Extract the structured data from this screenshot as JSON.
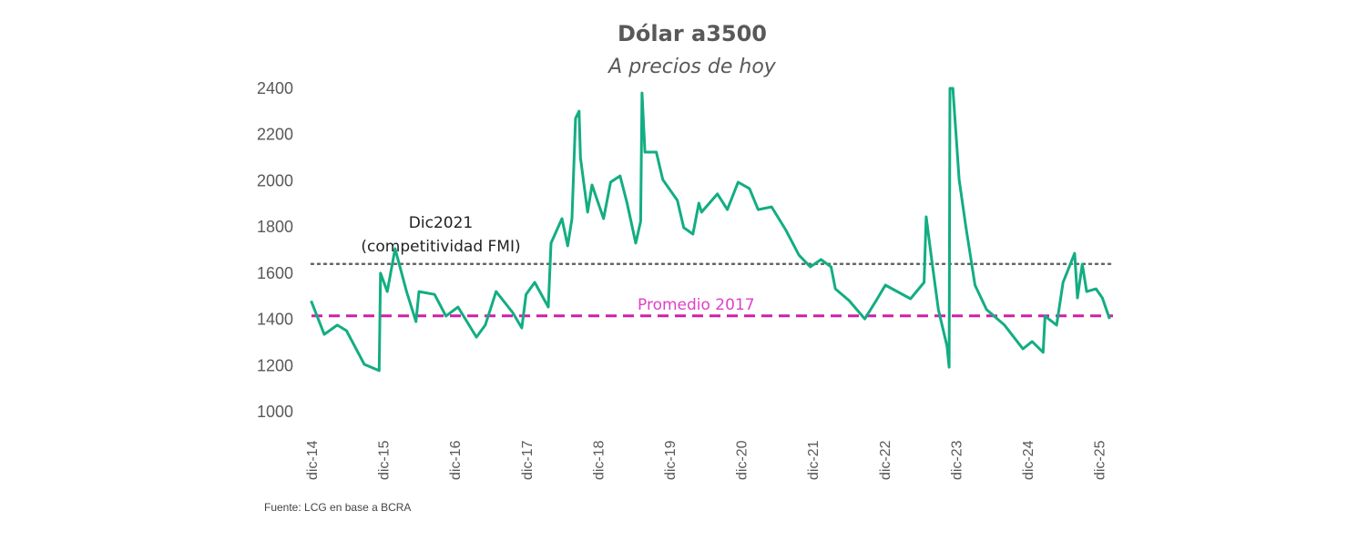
{
  "chart_data": {
    "type": "line",
    "title": "Dólar a3500",
    "subtitle": "A precios de hoy",
    "source": "Fuente: LCG  en base a BCRA",
    "xlabel": "",
    "ylabel": "",
    "ylim": [
      1000,
      2400
    ],
    "yticks": [
      "1000",
      "1200",
      "1400",
      "1600",
      "1800",
      "2000",
      "2200",
      "2400"
    ],
    "xticks": [
      "dic-14",
      "dic-15",
      "dic-16",
      "dic-17",
      "dic-18",
      "dic-19",
      "dic-20",
      "dic-21",
      "dic-22",
      "dic-23",
      "dic-24",
      "dic-25"
    ],
    "grid": false,
    "colors": {
      "series": "#13ad82",
      "reference_fmi": "#666666",
      "reference_2017": "#d11fa8",
      "text": "#595959"
    },
    "reference_lines": [
      {
        "label_line1": "Dic2021",
        "label_line2": "(competitividad FMI)",
        "value": 1640,
        "style": "dotted"
      },
      {
        "label": "Promedio 2017",
        "value": 1415,
        "style": "dashed"
      }
    ],
    "series": [
      {
        "points": [
          [
            "2014-12-01",
            1480
          ],
          [
            "2015-02-06",
            1335
          ],
          [
            "2015-04-13",
            1375
          ],
          [
            "2015-05-30",
            1351
          ],
          [
            "2015-08-29",
            1205
          ],
          [
            "2015-11-13",
            1178
          ],
          [
            "2015-11-20",
            1600
          ],
          [
            "2015-12-24",
            1520
          ],
          [
            "2016-02-02",
            1706
          ],
          [
            "2016-04-01",
            1520
          ],
          [
            "2016-05-19",
            1390
          ],
          [
            "2016-06-03",
            1520
          ],
          [
            "2016-08-22",
            1508
          ],
          [
            "2016-10-19",
            1414
          ],
          [
            "2016-12-20",
            1453
          ],
          [
            "2017-03-24",
            1323
          ],
          [
            "2017-05-08",
            1375
          ],
          [
            "2017-07-02",
            1520
          ],
          [
            "2017-09-24",
            1430
          ],
          [
            "2017-11-10",
            1363
          ],
          [
            "2017-12-02",
            1508
          ],
          [
            "2018-01-15",
            1560
          ],
          [
            "2018-03-25",
            1453
          ],
          [
            "2018-04-08",
            1730
          ],
          [
            "2018-06-03",
            1836
          ],
          [
            "2018-07-02",
            1718
          ],
          [
            "2018-07-24",
            1836
          ],
          [
            "2018-08-11",
            2270
          ],
          [
            "2018-08-29",
            2301
          ],
          [
            "2018-09-05",
            2100
          ],
          [
            "2018-10-12",
            1864
          ],
          [
            "2018-11-03",
            1982
          ],
          [
            "2019-01-01",
            1836
          ],
          [
            "2019-02-06",
            1994
          ],
          [
            "2019-03-26",
            2021
          ],
          [
            "2019-05-01",
            1903
          ],
          [
            "2019-06-14",
            1730
          ],
          [
            "2019-07-09",
            1824
          ],
          [
            "2019-07-16",
            2380
          ],
          [
            "2019-07-31",
            2124
          ],
          [
            "2019-09-27",
            2124
          ],
          [
            "2019-10-30",
            2005
          ],
          [
            "2020-01-12",
            1915
          ],
          [
            "2020-02-14",
            1797
          ],
          [
            "2020-04-01",
            1769
          ],
          [
            "2020-05-01",
            1903
          ],
          [
            "2020-05-15",
            1864
          ],
          [
            "2020-08-04",
            1943
          ],
          [
            "2020-09-24",
            1875
          ],
          [
            "2020-11-18",
            1994
          ],
          [
            "2021-01-15",
            1966
          ],
          [
            "2021-02-28",
            1875
          ],
          [
            "2021-05-08",
            1887
          ],
          [
            "2021-07-20",
            1785
          ],
          [
            "2021-09-24",
            1678
          ],
          [
            "2021-11-21",
            1627
          ],
          [
            "2022-01-15",
            1659
          ],
          [
            "2022-03-07",
            1627
          ],
          [
            "2022-03-29",
            1532
          ],
          [
            "2022-06-07",
            1481
          ],
          [
            "2022-08-26",
            1402
          ],
          [
            "2022-10-23",
            1481
          ],
          [
            "2022-12-09",
            1548
          ],
          [
            "2023-04-16",
            1489
          ],
          [
            "2023-06-24",
            1560
          ],
          [
            "2023-07-05",
            1844
          ],
          [
            "2023-08-03",
            1651
          ],
          [
            "2023-09-05",
            1442
          ],
          [
            "2023-10-19",
            1284
          ],
          [
            "2023-10-30",
            1193
          ],
          [
            "2023-11-03",
            2400
          ],
          [
            "2023-11-18",
            2400
          ],
          [
            "2023-12-20",
            2005
          ],
          [
            "2024-01-22",
            1808
          ],
          [
            "2024-03-10",
            1548
          ],
          [
            "2024-05-08",
            1442
          ],
          [
            "2024-08-08",
            1375
          ],
          [
            "2024-11-10",
            1272
          ],
          [
            "2024-12-27",
            1304
          ],
          [
            "2025-02-21",
            1257
          ],
          [
            "2025-03-03",
            1414
          ],
          [
            "2025-05-01",
            1375
          ],
          [
            "2025-06-03",
            1560
          ],
          [
            "2025-08-01",
            1686
          ],
          [
            "2025-08-15",
            1493
          ],
          [
            "2025-09-09",
            1639
          ],
          [
            "2025-10-01",
            1520
          ],
          [
            "2025-11-18",
            1532
          ],
          [
            "2025-12-20",
            1493
          ],
          [
            "2026-01-26",
            1402
          ]
        ]
      }
    ]
  }
}
